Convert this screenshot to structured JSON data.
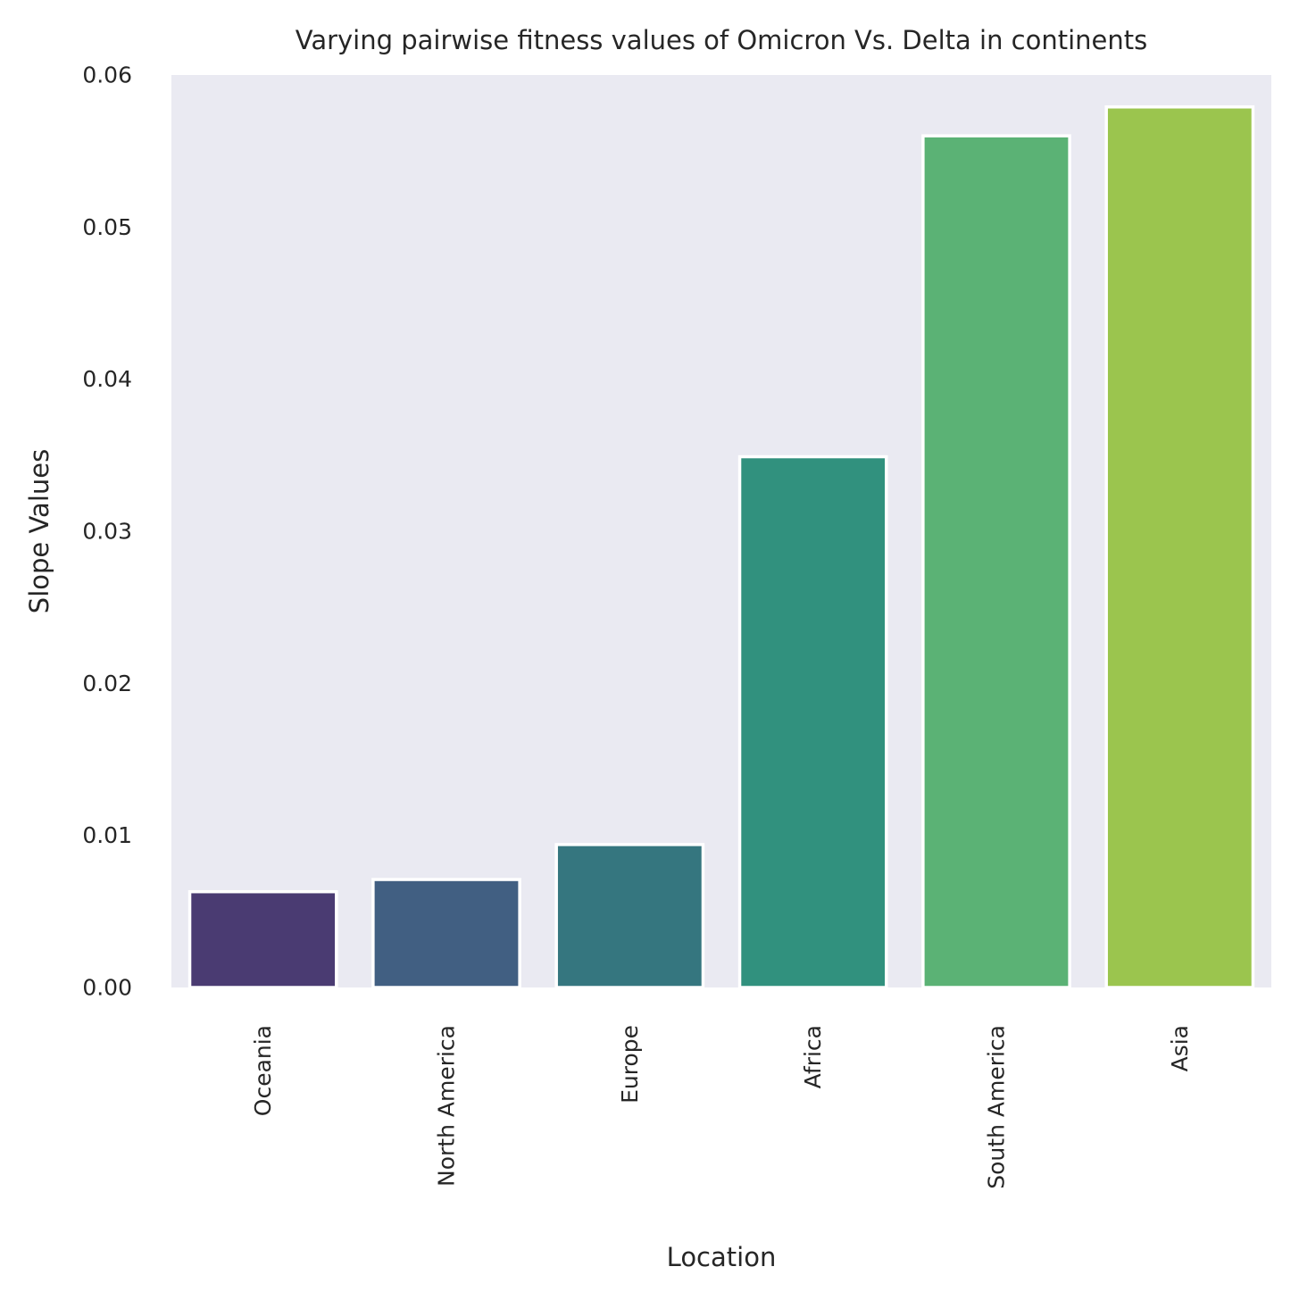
{
  "chart_data": {
    "type": "bar",
    "title": "Varying pairwise fitness values of Omicron Vs. Delta in continents",
    "xlabel": "Location",
    "ylabel": "Slope Values",
    "categories": [
      "Oceania",
      "North America",
      "Europe",
      "Africa",
      "South America",
      "Asia"
    ],
    "values": [
      0.0063,
      0.0071,
      0.0094,
      0.0349,
      0.056,
      0.0579
    ],
    "ylim": [
      0,
      0.06
    ],
    "yticks": [
      "0.00",
      "0.01",
      "0.02",
      "0.03",
      "0.04",
      "0.05",
      "0.06"
    ],
    "grid": false,
    "colors": [
      "#4a3b72",
      "#415f82",
      "#35767f",
      "#31917e",
      "#5bb275",
      "#9bc54e"
    ],
    "background": "#eaeaf2"
  }
}
